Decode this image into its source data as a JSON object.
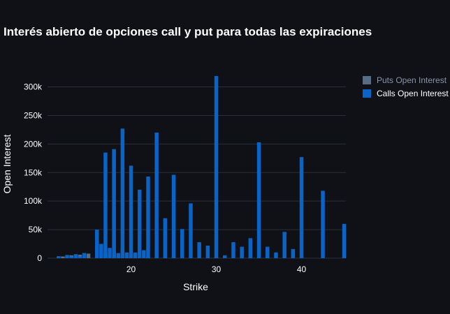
{
  "chart_data": {
    "type": "bar",
    "title": "Interés abierto de opciones call y put para todas las expiraciones",
    "xlabel": "Strike",
    "ylabel": "Open Interest",
    "xlim": [
      10.2,
      45.2
    ],
    "ylim": [
      0,
      330000
    ],
    "x_ticks": [
      20,
      30,
      40
    ],
    "x_tick_labels": [
      "20",
      "30",
      "40"
    ],
    "y_ticks": [
      0,
      50000,
      100000,
      150000,
      200000,
      250000,
      300000
    ],
    "y_tick_labels": [
      "0",
      "50k",
      "100k",
      "150k",
      "200k",
      "250k",
      "300k"
    ],
    "grid": true,
    "legend_position": "top-right",
    "series": [
      {
        "name": "Puts Open Interest",
        "color": "#566d85",
        "points": [
          [
            12,
            3000
          ],
          [
            13,
            5000
          ],
          [
            14,
            6000
          ],
          [
            15,
            8000
          ],
          [
            16,
            6000
          ],
          [
            17,
            10000
          ],
          [
            18,
            12000
          ],
          [
            19,
            15000
          ],
          [
            20,
            8000
          ],
          [
            21,
            8000
          ],
          [
            22,
            3000
          ],
          [
            23,
            5000
          ],
          [
            24,
            2000
          ],
          [
            25,
            2000
          ],
          [
            30,
            1000
          ]
        ]
      },
      {
        "name": "Calls Open Interest",
        "color": "#0a63c6",
        "points": [
          [
            11.5,
            3500
          ],
          [
            12.5,
            5500
          ],
          [
            13,
            3000
          ],
          [
            13.5,
            7000
          ],
          [
            14,
            3000
          ],
          [
            14.5,
            9000
          ],
          [
            16,
            50000
          ],
          [
            16.5,
            25000
          ],
          [
            17,
            185000
          ],
          [
            17.5,
            18000
          ],
          [
            18,
            191000
          ],
          [
            18.5,
            9000
          ],
          [
            19,
            227000
          ],
          [
            19.5,
            10000
          ],
          [
            20,
            162000
          ],
          [
            20.5,
            10000
          ],
          [
            21,
            120000
          ],
          [
            21.5,
            14000
          ],
          [
            22,
            143000
          ],
          [
            23,
            220000
          ],
          [
            24,
            70000
          ],
          [
            25,
            146000
          ],
          [
            26,
            51000
          ],
          [
            27,
            96000
          ],
          [
            28,
            28000
          ],
          [
            29,
            22000
          ],
          [
            30,
            319000
          ],
          [
            31,
            5000
          ],
          [
            32,
            28000
          ],
          [
            33,
            20000
          ],
          [
            34,
            35000
          ],
          [
            35,
            203000
          ],
          [
            36,
            20000
          ],
          [
            37,
            10000
          ],
          [
            38,
            46000
          ],
          [
            39,
            16000
          ],
          [
            40,
            177000
          ],
          [
            42.5,
            118000
          ],
          [
            45,
            60000
          ]
        ]
      }
    ]
  }
}
